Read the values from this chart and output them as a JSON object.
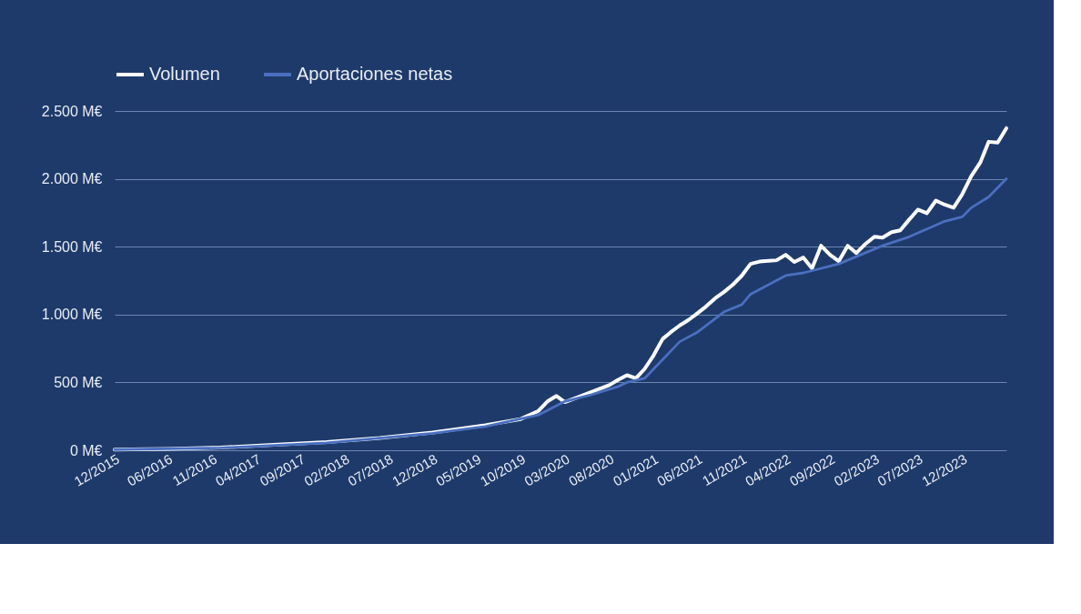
{
  "chart_data": {
    "type": "line",
    "xlim": [
      "2015-12",
      "2024-05"
    ],
    "xticks": [
      {
        "value": "2015-12",
        "label": "12/2015"
      },
      {
        "value": "2016-06",
        "label": "06/2016"
      },
      {
        "value": "2016-11",
        "label": "11/2016"
      },
      {
        "value": "2017-04",
        "label": "04/2017"
      },
      {
        "value": "2017-09",
        "label": "09/2017"
      },
      {
        "value": "2018-02",
        "label": "02/2018"
      },
      {
        "value": "2018-07",
        "label": "07/2018"
      },
      {
        "value": "2018-12",
        "label": "12/2018"
      },
      {
        "value": "2019-05",
        "label": "05/2019"
      },
      {
        "value": "2019-10",
        "label": "10/2019"
      },
      {
        "value": "2020-03",
        "label": "03/2020"
      },
      {
        "value": "2020-08",
        "label": "08/2020"
      },
      {
        "value": "2021-01",
        "label": "01/2021"
      },
      {
        "value": "2021-06",
        "label": "06/2021"
      },
      {
        "value": "2021-11",
        "label": "11/2021"
      },
      {
        "value": "2022-04",
        "label": "04/2022"
      },
      {
        "value": "2022-09",
        "label": "09/2022"
      },
      {
        "value": "2023-02",
        "label": "02/2023"
      },
      {
        "value": "2023-07",
        "label": "07/2023"
      },
      {
        "value": "2023-12",
        "label": "12/2023"
      }
    ],
    "ylim": [
      0,
      2500
    ],
    "yticks": [
      {
        "value": 0,
        "label": "0 M€"
      },
      {
        "value": 500,
        "label": "500 M€"
      },
      {
        "value": 1000,
        "label": "1.000 M€"
      },
      {
        "value": 1500,
        "label": "1.500 M€"
      },
      {
        "value": 2000,
        "label": "2.000 M€"
      },
      {
        "value": 2500,
        "label": "2.500 M€"
      }
    ],
    "grid": "y",
    "legend": "top left",
    "line_style": "solid",
    "series": [
      {
        "name": "Volumen",
        "color": "#ffffff",
        "x": [
          "2015-12",
          "2016-06",
          "2016-12",
          "2017-06",
          "2017-12",
          "2018-06",
          "2018-12",
          "2019-06",
          "2019-10",
          "2019-12",
          "2020-01",
          "2020-02",
          "2020-03",
          "2020-04",
          "2020-06",
          "2020-08",
          "2020-09",
          "2020-10",
          "2020-11",
          "2020-12",
          "2021-01",
          "2021-02",
          "2021-03",
          "2021-04",
          "2021-05",
          "2021-06",
          "2021-07",
          "2021-08",
          "2021-09",
          "2021-10",
          "2021-11",
          "2021-12",
          "2022-01",
          "2022-02",
          "2022-03",
          "2022-04",
          "2022-05",
          "2022-06",
          "2022-07",
          "2022-08",
          "2022-09",
          "2022-10",
          "2022-11",
          "2022-12",
          "2023-01",
          "2023-02",
          "2023-03",
          "2023-04",
          "2023-05",
          "2023-06",
          "2023-07",
          "2023-08",
          "2023-09",
          "2023-10",
          "2023-11",
          "2023-12",
          "2024-01",
          "2024-02",
          "2024-03",
          "2024-04",
          "2024-05"
        ],
        "values": [
          5,
          10,
          20,
          40,
          60,
          90,
          130,
          185,
          230,
          290,
          360,
          400,
          355,
          380,
          430,
          480,
          520,
          553,
          530,
          600,
          700,
          820,
          870,
          920,
          960,
          1010,
          1060,
          1120,
          1167,
          1220,
          1287,
          1373,
          1390,
          1395,
          1400,
          1440,
          1387,
          1420,
          1340,
          1507,
          1440,
          1393,
          1507,
          1453,
          1520,
          1573,
          1567,
          1607,
          1620,
          1700,
          1773,
          1747,
          1840,
          1810,
          1787,
          1887,
          2020,
          2120,
          2273,
          2267,
          2373
        ]
      },
      {
        "name": "Aportaciones netas",
        "color": "#4a6fc0",
        "x": [
          "2015-12",
          "2016-12",
          "2017-12",
          "2018-12",
          "2019-06",
          "2019-12",
          "2020-03",
          "2020-06",
          "2020-09",
          "2020-10",
          "2020-12",
          "2021-04",
          "2021-06",
          "2021-09",
          "2021-11",
          "2021-12",
          "2022-02",
          "2022-04",
          "2022-06",
          "2022-10",
          "2023-03",
          "2023-06",
          "2023-10",
          "2023-12",
          "2024-01",
          "2024-03",
          "2024-05"
        ],
        "values": [
          5,
          18,
          55,
          125,
          175,
          260,
          360,
          410,
          470,
          500,
          530,
          800,
          870,
          1020,
          1073,
          1150,
          1220,
          1287,
          1307,
          1373,
          1507,
          1573,
          1687,
          1720,
          1787,
          1867,
          2000
        ]
      }
    ]
  }
}
